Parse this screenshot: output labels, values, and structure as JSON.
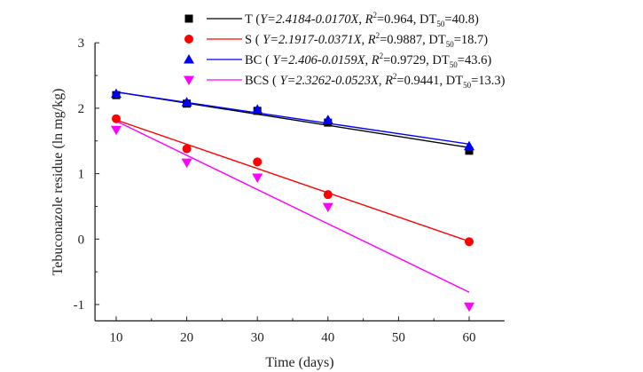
{
  "chart_data": {
    "type": "scatter",
    "title": "",
    "xlabel": "Time (days)",
    "ylabel": "Tebuconazole residue (ln mg/kg)",
    "xlim": [
      7,
      65
    ],
    "ylim": [
      -1.25,
      3
    ],
    "xticks": [
      10,
      20,
      30,
      40,
      50,
      60
    ],
    "yticks": [
      -1,
      0,
      1,
      2,
      3
    ],
    "grid": false,
    "legend_position": "top",
    "x": [
      10,
      20,
      30,
      40,
      60
    ],
    "series": [
      {
        "name": "T",
        "marker": "square",
        "color": "#000000",
        "values": [
          2.2,
          2.07,
          1.96,
          1.78,
          1.35
        ],
        "fit": {
          "intercept": 2.4184,
          "slope": -0.017
        },
        "equation": "Y=2.4184-0.0170X",
        "r2": "0.964",
        "dt50": "40.8",
        "open": "("
      },
      {
        "name": "S",
        "marker": "circle",
        "color": "#ff0000",
        "values": [
          1.84,
          1.38,
          1.18,
          0.68,
          -0.04
        ],
        "fit": {
          "intercept": 2.1917,
          "slope": -0.0371
        },
        "equation": "Y=2.1917-0.0371X",
        "r2": "0.9887",
        "dt50": "18.7",
        "open": "( "
      },
      {
        "name": "BC",
        "marker": "triangle-up",
        "color": "#0000ff",
        "values": [
          2.22,
          2.09,
          1.98,
          1.82,
          1.42
        ],
        "fit": {
          "intercept": 2.406,
          "slope": -0.0159
        },
        "equation": "Y=2.406-0.0159X",
        "r2": "0.9729",
        "dt50": "43.6",
        "open": "( "
      },
      {
        "name": "BCS",
        "marker": "triangle-down",
        "color": "#ff00ff",
        "values": [
          1.67,
          1.17,
          0.94,
          0.49,
          -1.03
        ],
        "fit": {
          "intercept": 2.3262,
          "slope": -0.0523
        },
        "equation": "Y=2.3262-0.0523X",
        "r2": "0.9441",
        "dt50": "13.3",
        "open": "( "
      }
    ]
  }
}
